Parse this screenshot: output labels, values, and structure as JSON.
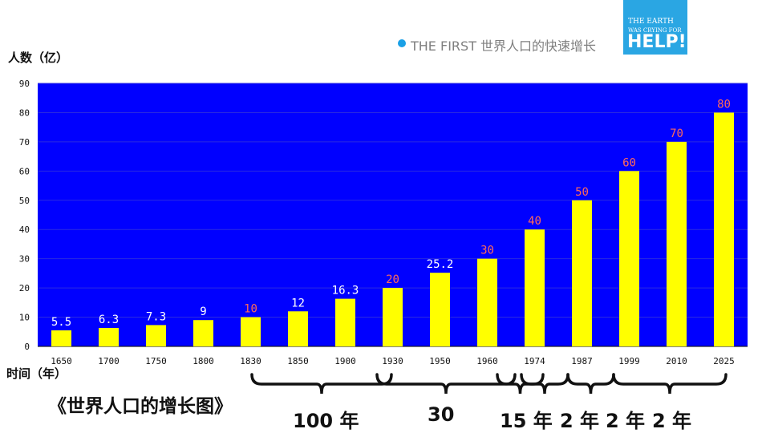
{
  "header": {
    "title": "THE FIRST  世界人口的快速增长"
  },
  "logo": {
    "line1": "THE EARTH",
    "line2": "WAS CRYING FOR",
    "line3": "HELP!"
  },
  "bottom_title": "《世界人口的增长图》",
  "span_labels": [
    "100 年",
    "30",
    "15 年",
    "2 年",
    "2 年",
    "2 年"
  ],
  "colors": {
    "plot_bg": "#0000ff",
    "bar": "#ffff00",
    "label_light": "#ffffff",
    "label_red": "#ff6a5a"
  },
  "chart_data": {
    "type": "bar",
    "title": "",
    "ylabel": "人数（亿）",
    "xlabel": "时间（年）",
    "ylim": [
      0,
      90
    ],
    "yticks": [
      0,
      10,
      20,
      30,
      40,
      50,
      60,
      70,
      80,
      90
    ],
    "categories": [
      "1650",
      "1700",
      "1750",
      "1800",
      "1830",
      "1850",
      "1900",
      "1930",
      "1950",
      "1960",
      "1974",
      "1987",
      "1999",
      "2010",
      "2025"
    ],
    "values": [
      5.5,
      6.3,
      7.3,
      9,
      10,
      12,
      16.3,
      20,
      25.2,
      30,
      40,
      50,
      60,
      70,
      80
    ],
    "data_labels": [
      "5.5",
      "6.3",
      "7.3",
      "9",
      "10",
      "12",
      "16.3",
      "20",
      "25.2",
      "30",
      "40",
      "50",
      "60",
      "70",
      "80"
    ],
    "red_labels": [
      "10",
      "20",
      "30",
      "40",
      "50",
      "60",
      "70",
      "80"
    ],
    "grid": true
  }
}
